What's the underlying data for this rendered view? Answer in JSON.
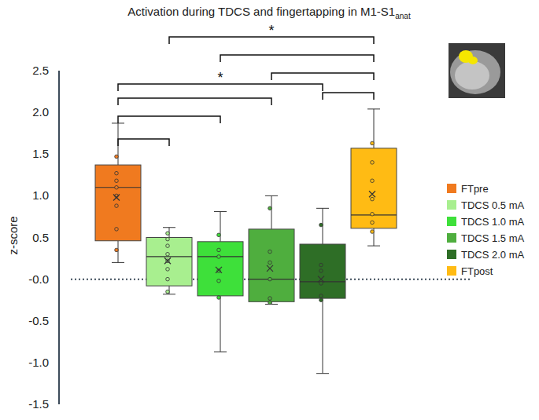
{
  "chart_data": {
    "type": "box",
    "title": "Activation during TDCS and fingertapping in M1-S1",
    "title_subscript": "anat",
    "y_label": "z-score",
    "ylim": [
      -1.5,
      2.5
    ],
    "yticks": [
      {
        "value": -1.5,
        "label": "-1.5"
      },
      {
        "value": -1,
        "label": "-1.0"
      },
      {
        "value": -0.5,
        "label": "-0.5"
      },
      {
        "value": 0,
        "label": "-0.0"
      },
      0.5,
      {
        "value": 1,
        "label": "1.0"
      },
      1.5,
      {
        "value": 2,
        "label": "2.0"
      },
      2.5
    ],
    "tick_labels": "y",
    "grid": false,
    "legend": "right",
    "reference_line": 0,
    "series": [
      {
        "name": "FTpre",
        "color": "#f07a1f",
        "min": 0.2,
        "q1": 0.46,
        "median": 1.1,
        "q3": 1.37,
        "max": 1.87,
        "mean": 0.98,
        "points": [
          1.47,
          1.27,
          1.18,
          1.1,
          1.0,
          0.88,
          0.6,
          0.35
        ]
      },
      {
        "name": "TDCS 0.5 mA",
        "color": "#a8ef8f",
        "min": -0.18,
        "q1": -0.08,
        "median": 0.27,
        "q3": 0.5,
        "max": 0.62,
        "mean": 0.22,
        "points": [
          0.55,
          0.48,
          0.4,
          0.3,
          0.22,
          0.12,
          0.0,
          -0.15
        ]
      },
      {
        "name": "TDCS 1.0 mA",
        "color": "#3ee03a",
        "min": -0.87,
        "q1": -0.2,
        "median": 0.27,
        "q3": 0.45,
        "max": 0.81,
        "mean": 0.11,
        "points": [
          0.53,
          0.35,
          0.27,
          0.1,
          -0.02,
          -0.22
        ]
      },
      {
        "name": "TDCS 1.5 mA",
        "color": "#4fae3e",
        "min": -0.3,
        "q1": -0.27,
        "median": 0.0,
        "q3": 0.6,
        "max": 1.0,
        "mean": 0.13,
        "points": [
          0.85,
          0.33,
          0.2,
          0.0,
          -0.23,
          -0.28
        ]
      },
      {
        "name": "TDCS 2.0 mA",
        "color": "#2e6e26",
        "min": -1.13,
        "q1": -0.23,
        "median": -0.03,
        "q3": 0.42,
        "max": 0.85,
        "mean": 0.0,
        "points": [
          0.65,
          0.17,
          0.1,
          -0.05,
          -0.2,
          -0.25
        ]
      },
      {
        "name": "FTpost",
        "color": "#ffbb14",
        "min": 0.4,
        "q1": 0.61,
        "median": 0.77,
        "q3": 1.57,
        "max": 2.04,
        "mean": 1.02,
        "points": [
          1.63,
          1.4,
          1.18,
          0.96,
          0.78,
          0.68,
          0.57
        ]
      }
    ],
    "significance": [
      {
        "pair": [
          1,
          5
        ],
        "label": "*"
      },
      {
        "pair": [
          2,
          5
        ]
      },
      {
        "pair": [
          3,
          5
        ]
      },
      {
        "pair": [
          4,
          5
        ]
      },
      {
        "pair": [
          0,
          4
        ],
        "label": "*"
      },
      {
        "pair": [
          0,
          3
        ]
      },
      {
        "pair": [
          0,
          2
        ]
      },
      {
        "pair": [
          0,
          1
        ]
      }
    ]
  }
}
